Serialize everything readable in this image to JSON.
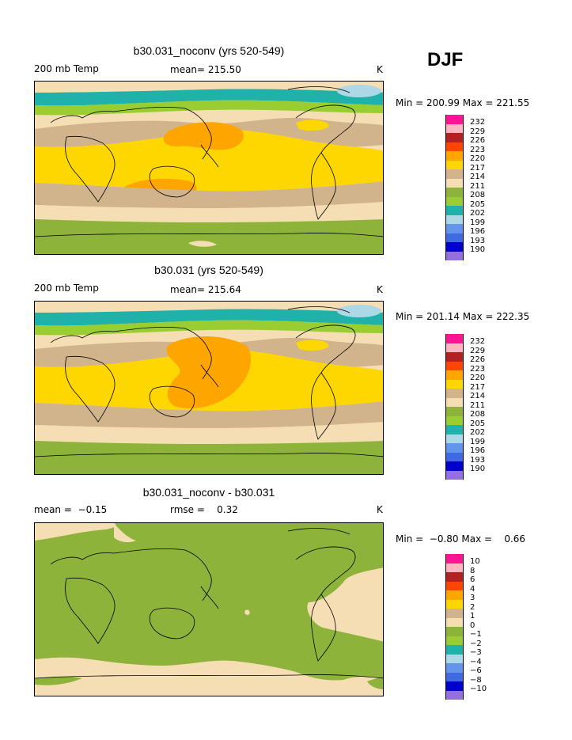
{
  "season": "DJF",
  "colors": {
    "c190": "#9370db",
    "c193": "#0000cd",
    "c196": "#4169e1",
    "c199": "#6495ed",
    "c202": "#add8e6",
    "c205": "#20b2aa",
    "c208": "#9acd32",
    "c211": "#8db33a",
    "c214": "#f5deb3",
    "c217": "#d2b48c",
    "c220": "#ffd700",
    "c223": "#ffa500",
    "c226": "#ff4500",
    "c229": "#b22222",
    "c232": "#ffb6c1",
    "c235": "#ff1493"
  },
  "panels": [
    {
      "title": "b30.031_noconv (yrs 520-549)",
      "left_label": "200 mb Temp",
      "mean_label": "mean= 215.50",
      "units": "K",
      "minmax": "Min = 200.99 Max = 221.55",
      "legend_labels": [
        "232",
        "229",
        "226",
        "223",
        "220",
        "217",
        "214",
        "211",
        "208",
        "205",
        "202",
        "199",
        "196",
        "193",
        "190"
      ]
    },
    {
      "title": "b30.031 (yrs 520-549)",
      "left_label": "200 mb Temp",
      "mean_label": "mean= 215.64",
      "units": "K",
      "minmax": "Min = 201.14 Max = 222.35",
      "legend_labels": [
        "232",
        "229",
        "226",
        "223",
        "220",
        "217",
        "214",
        "211",
        "208",
        "205",
        "202",
        "199",
        "196",
        "193",
        "190"
      ]
    },
    {
      "title": "b30.031_noconv - b30.031",
      "left_label": "mean =  −0.15",
      "mean_label": "rmse =    0.32",
      "units": "K",
      "minmax": "Min =  −0.80 Max =    0.66",
      "legend_labels": [
        "10",
        "8",
        "6",
        "4",
        "3",
        "2",
        "1",
        "0",
        "−1",
        "−2",
        "−3",
        "−4",
        "−6",
        "−8",
        "−10"
      ]
    }
  ]
}
